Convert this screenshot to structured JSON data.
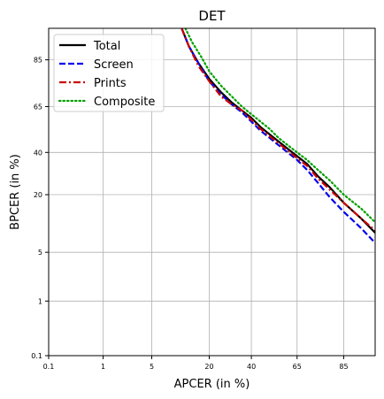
{
  "chart_data": {
    "type": "line",
    "title": "DET",
    "xlabel": "APCER (in %)",
    "ylabel": "BPCER (in %)",
    "scale": "probit",
    "xticks": [
      0.1,
      1,
      5,
      20,
      40,
      65,
      85
    ],
    "yticks": [
      0.1,
      1,
      5,
      20,
      40,
      65,
      85
    ],
    "xlim": [
      0.1,
      93
    ],
    "ylim": [
      0.1,
      93
    ],
    "grid": true,
    "legend_position": "top-left",
    "series": [
      {
        "name": "Total",
        "color": "#000000",
        "dash": "solid",
        "x": [
          11,
          13,
          16,
          20,
          25,
          30,
          35,
          40,
          45,
          50,
          55,
          60,
          65,
          70,
          75,
          80,
          85,
          90,
          93
        ],
        "y": [
          93,
          89,
          84,
          78,
          72,
          67,
          63,
          59,
          54,
          50,
          46,
          42,
          38,
          34,
          28,
          23,
          17,
          12,
          8.5
        ]
      },
      {
        "name": "Screen",
        "color": "#0000ee",
        "dash": "dashed",
        "x": [
          11,
          13,
          16,
          20,
          25,
          30,
          35,
          40,
          45,
          50,
          55,
          60,
          65,
          70,
          75,
          80,
          85,
          90,
          93
        ],
        "y": [
          93,
          89,
          84,
          77,
          71,
          66,
          62,
          57,
          52,
          48,
          44,
          40,
          36,
          31,
          25,
          19,
          14,
          9.5,
          6.5
        ]
      },
      {
        "name": "Prints",
        "color": "#cc0000",
        "dash": "dashdot",
        "x": [
          11,
          13,
          16,
          20,
          25,
          30,
          35,
          40,
          45,
          50,
          55,
          60,
          65,
          70,
          75,
          80,
          85,
          90,
          93
        ],
        "y": [
          93,
          89,
          83,
          77,
          70,
          66,
          63,
          58,
          53,
          49,
          45,
          41,
          37,
          33,
          27,
          22,
          17,
          12,
          9
        ]
      },
      {
        "name": "Composite",
        "color": "#00a000",
        "dash": "dotted",
        "x": [
          12,
          14,
          17,
          20,
          25,
          30,
          35,
          40,
          45,
          50,
          55,
          60,
          65,
          70,
          75,
          80,
          85,
          90,
          93
        ],
        "y": [
          93,
          90,
          86,
          81,
          75,
          70,
          65,
          61,
          57,
          53,
          48,
          44,
          40,
          36,
          31,
          26,
          20,
          15,
          11
        ]
      }
    ]
  }
}
